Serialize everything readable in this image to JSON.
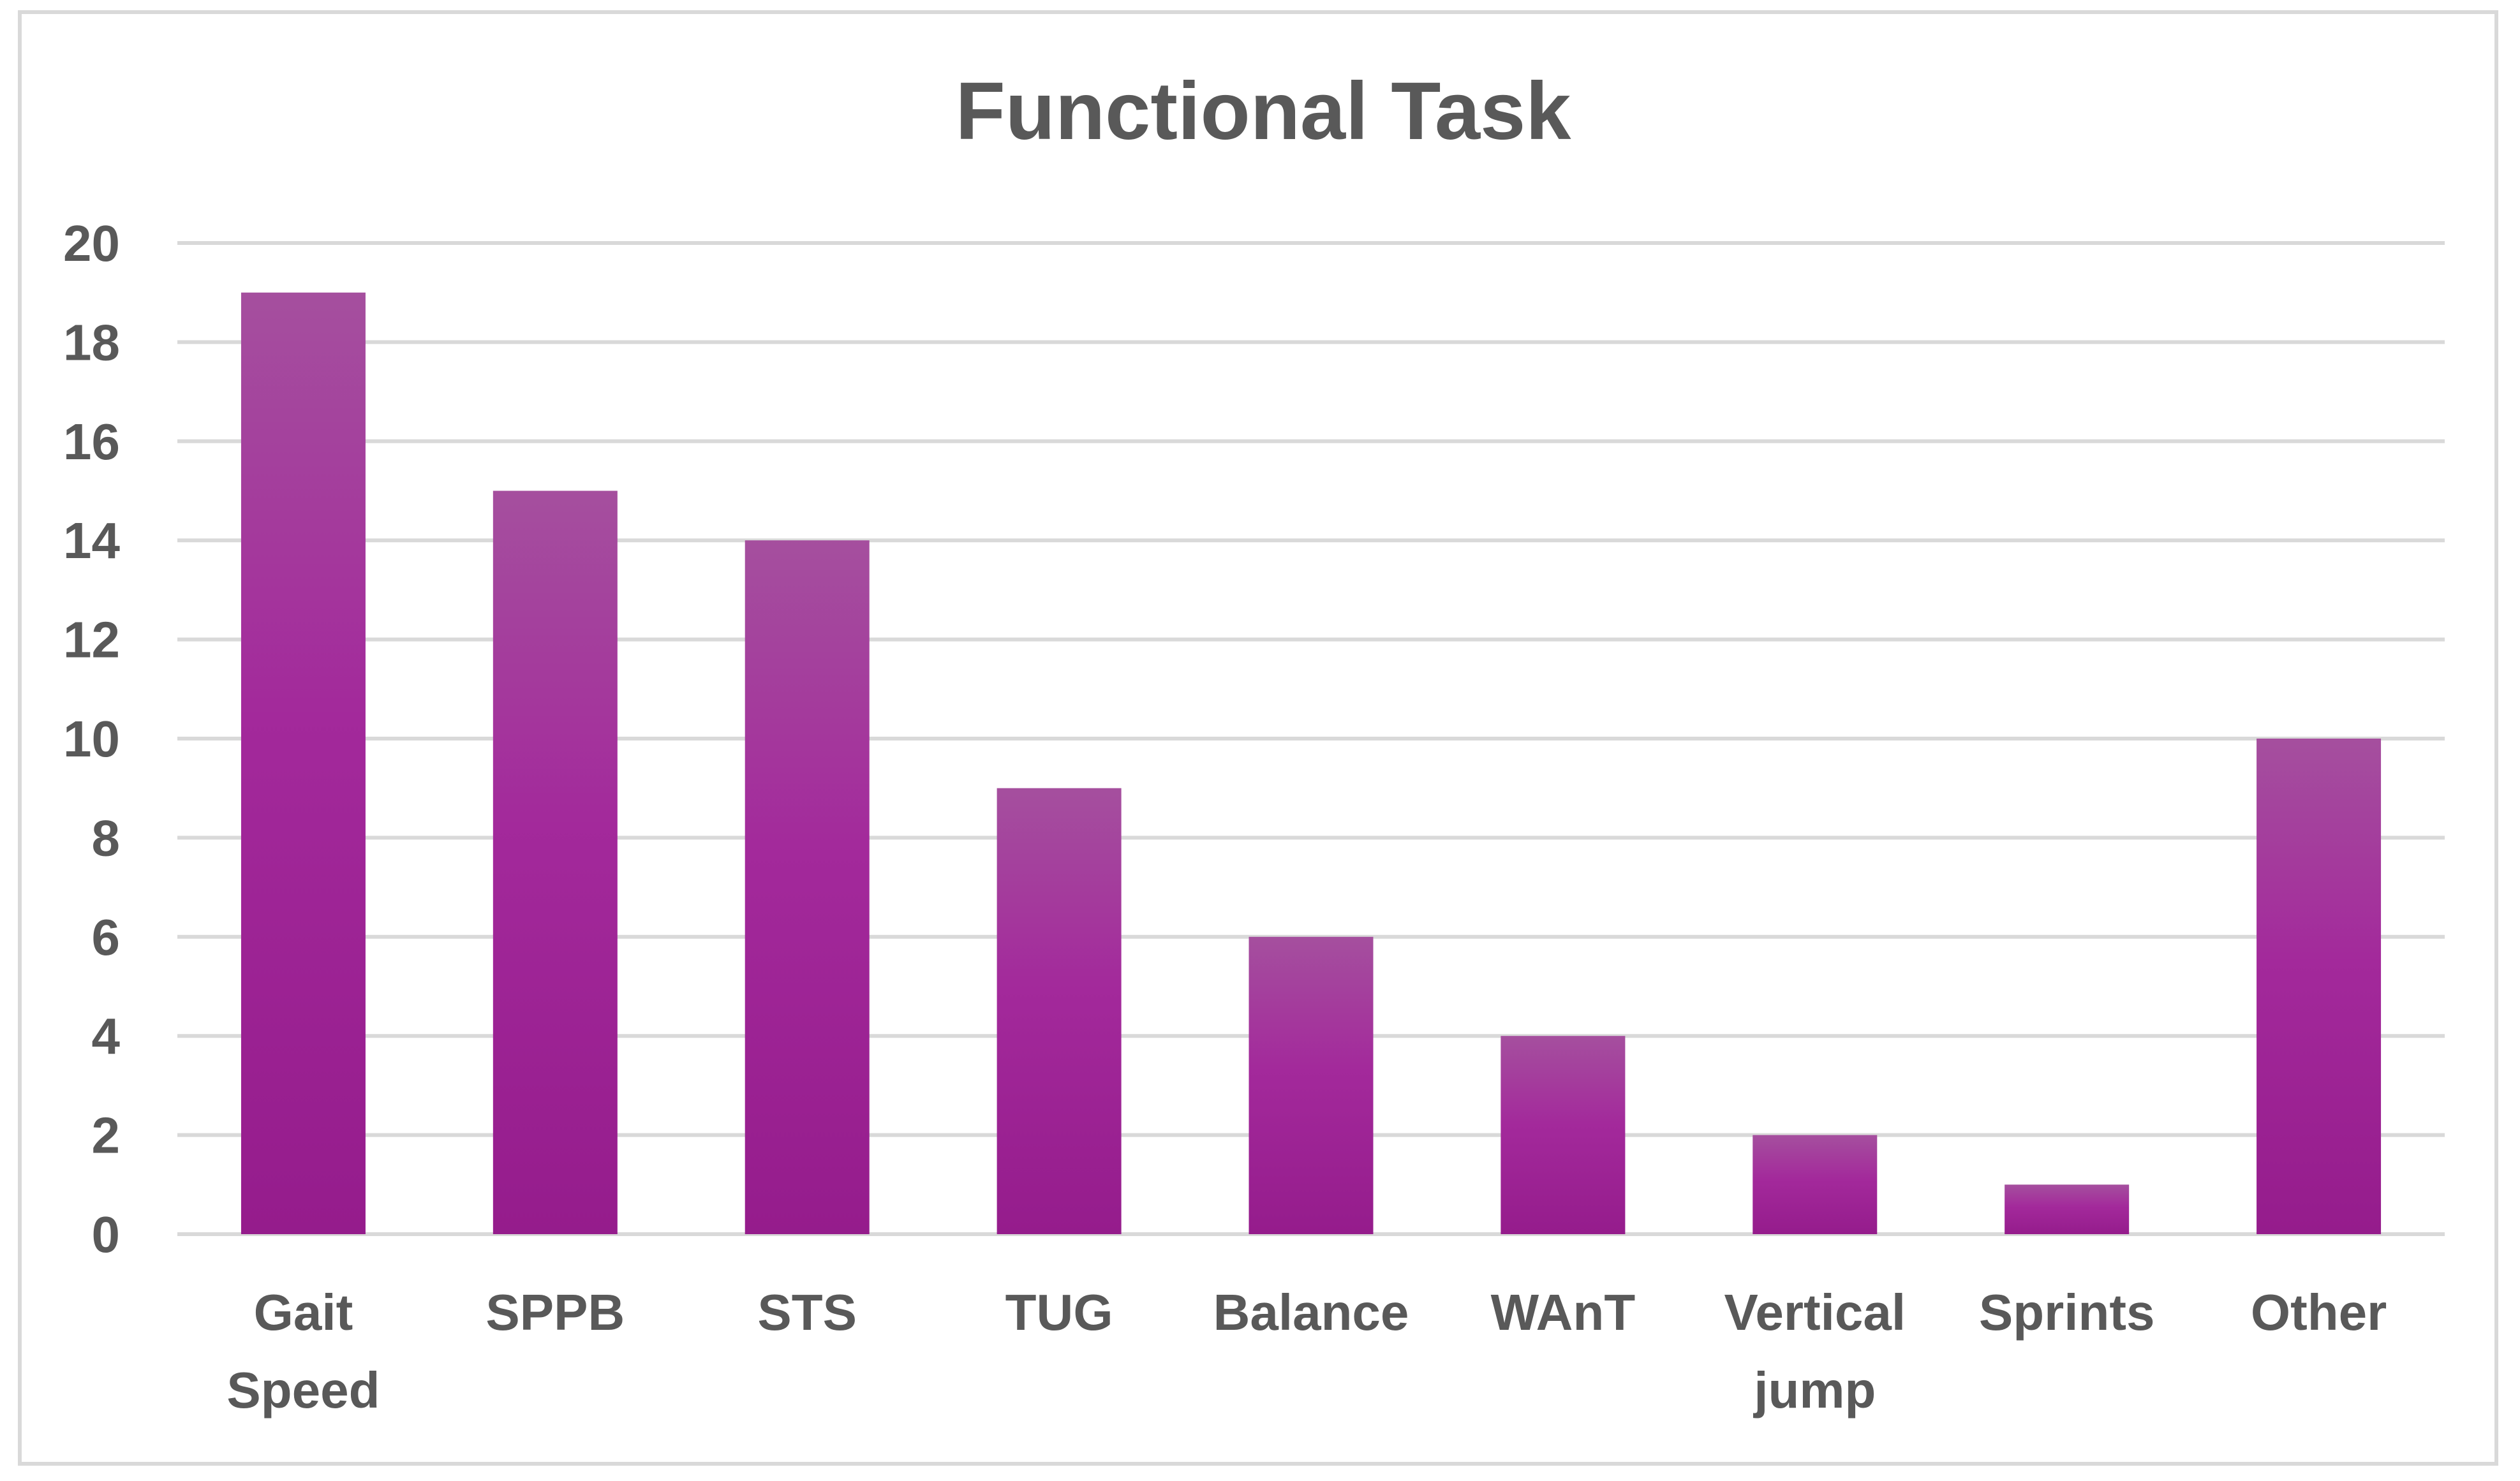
{
  "chart_data": {
    "type": "bar",
    "title": "Functional Task",
    "xlabel": "",
    "ylabel": "",
    "categories": [
      "Gait Speed",
      "SPPB",
      "STS",
      "TUG",
      "Balance",
      "WAnT",
      "Vertical jump",
      "Sprints",
      "Other"
    ],
    "category_lines": [
      [
        "Gait",
        "Speed"
      ],
      [
        "SPPB"
      ],
      [
        "STS"
      ],
      [
        "TUG"
      ],
      [
        "Balance"
      ],
      [
        "WAnT"
      ],
      [
        "Vertical",
        "jump"
      ],
      [
        "Sprints"
      ],
      [
        "Other"
      ]
    ],
    "values": [
      19,
      15,
      14,
      9,
      6,
      4,
      2,
      1,
      10
    ],
    "ylim": [
      0,
      20
    ],
    "yticks": [
      0,
      2,
      4,
      6,
      8,
      10,
      12,
      14,
      16,
      18,
      20
    ],
    "grid": true,
    "legend": "none",
    "colors": {
      "bar_top": "#a54f9e",
      "bar_mid": "#a3299b",
      "bar_bottom": "#951c8c",
      "grid": "#d9d9d9",
      "text": "#595959",
      "frame": "#d9d9d9"
    }
  }
}
